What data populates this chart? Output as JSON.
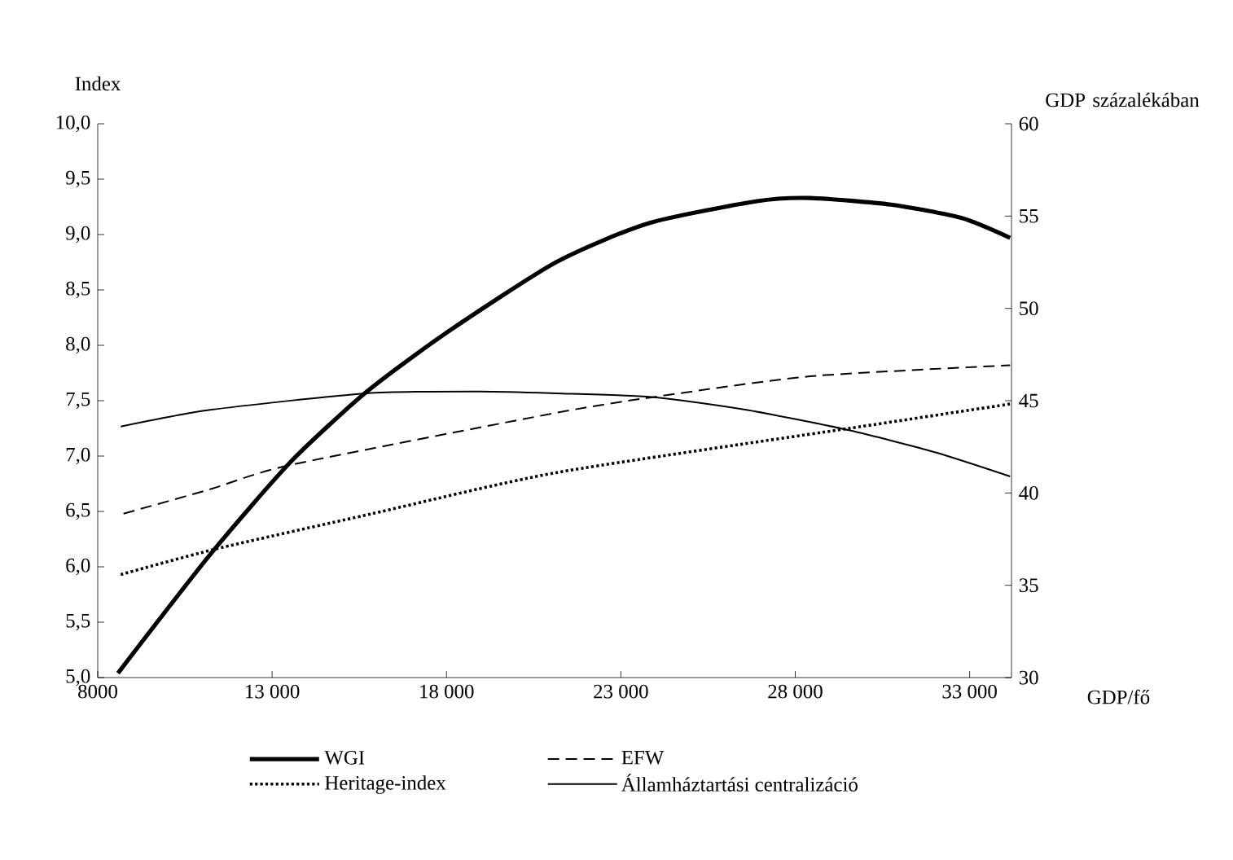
{
  "chart_data": {
    "type": "line",
    "xlabel": "GDP/fő",
    "ylabel": "Index",
    "y2label": "GDP százalékában",
    "legend": "bottom",
    "grid": false,
    "xlim": [
      8000,
      34200
    ],
    "ylim": [
      5,
      10
    ],
    "y2lim": [
      30,
      60
    ],
    "xticks": [
      {
        "value": 8000,
        "label": "8000"
      },
      {
        "value": 13000,
        "label": "13 000"
      },
      {
        "value": 18000,
        "label": "18 000"
      },
      {
        "value": 23000,
        "label": "23 000"
      },
      {
        "value": 28000,
        "label": "28 000"
      },
      {
        "value": 33000,
        "label": "33 000"
      }
    ],
    "yticks": [
      {
        "value": 5,
        "label": "5,0"
      },
      {
        "value": 5.5,
        "label": "5,5"
      },
      {
        "value": 6,
        "label": "6,0"
      },
      {
        "value": 6.5,
        "label": "6,5"
      },
      {
        "value": 7,
        "label": "7,0"
      },
      {
        "value": 7.5,
        "label": "7,5"
      },
      {
        "value": 8,
        "label": "8,0"
      },
      {
        "value": 8.5,
        "label": "8,5"
      },
      {
        "value": 9,
        "label": "9,0"
      },
      {
        "value": 9.5,
        "label": "9,5"
      },
      {
        "value": 10,
        "label": "10,0"
      }
    ],
    "y2ticks": [
      30,
      35,
      40,
      45,
      50,
      55,
      60
    ],
    "series": [
      {
        "name": "WGI",
        "color": "#000000",
        "line_style": "solid",
        "x": [
          8580,
          11220,
          13540,
          15710,
          18030,
          21140,
          23770,
          26870,
          28420,
          30750,
          32760,
          34160
        ],
        "values": [
          5.04,
          6.11,
          6.95,
          7.58,
          8.12,
          8.75,
          9.1,
          9.3,
          9.33,
          9.27,
          9.15,
          8.97
        ]
      },
      {
        "name": "EFW",
        "color": "#000000",
        "line_style": "dashed",
        "x": [
          8740,
          11220,
          13540,
          21140,
          23880,
          28420,
          34160
        ],
        "values": [
          6.48,
          6.7,
          6.92,
          7.39,
          7.53,
          7.72,
          7.82
        ]
      },
      {
        "name": "Heritage-index",
        "color": "#000000",
        "line_style": "dotted",
        "x": [
          8660,
          11370,
          15870,
          21140,
          29540,
          34160
        ],
        "values": [
          5.93,
          6.16,
          6.48,
          6.85,
          7.25,
          7.47
        ]
      },
      {
        "name": "Államháztartási centralizáció",
        "color": "#000000",
        "line_style": "solid",
        "axis": "y2",
        "x": [
          8660,
          11220,
          15710,
          18970,
          21140,
          23880,
          26600,
          29540,
          32020,
          34160
        ],
        "values": [
          43.6,
          44.5,
          45.4,
          45.5,
          45.4,
          45.2,
          44.5,
          43.4,
          42.2,
          40.9
        ]
      }
    ]
  }
}
